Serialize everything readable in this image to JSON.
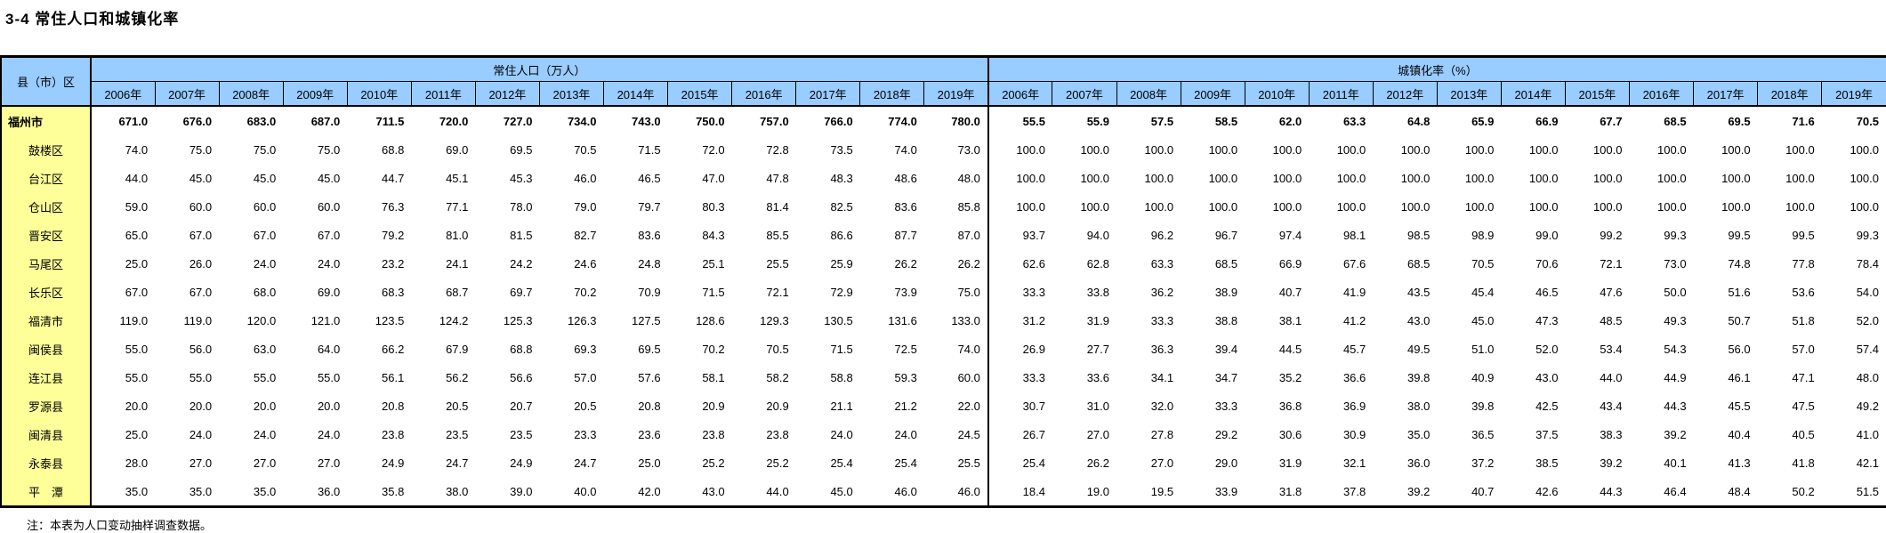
{
  "title": "3-4 常住人口和城镇化率",
  "note": "注：本表为人口变动抽样调查数据。",
  "colors": {
    "header_bg": "#99CCFF",
    "label_bg": "#FFFF99",
    "border": "#000000",
    "page_bg": "#FFFFFF"
  },
  "table": {
    "corner_header": "县（市）区",
    "group_headers": {
      "population": "常住人口（万人）",
      "urbanization": "城镇化率（%）"
    },
    "years": [
      "2006年",
      "2007年",
      "2008年",
      "2009年",
      "2010年",
      "2011年",
      "2012年",
      "2013年",
      "2014年",
      "2015年",
      "2016年",
      "2017年",
      "2018年",
      "2019年"
    ],
    "rows": [
      {
        "name": "福州市",
        "bold": true,
        "indent": false,
        "pop": [
          "671.0",
          "676.0",
          "683.0",
          "687.0",
          "711.5",
          "720.0",
          "727.0",
          "734.0",
          "743.0",
          "750.0",
          "757.0",
          "766.0",
          "774.0",
          "780.0"
        ],
        "rate": [
          "55.5",
          "55.9",
          "57.5",
          "58.5",
          "62.0",
          "63.3",
          "64.8",
          "65.9",
          "66.9",
          "67.7",
          "68.5",
          "69.5",
          "71.6",
          "70.5"
        ]
      },
      {
        "name": "鼓楼区",
        "bold": false,
        "indent": true,
        "pop": [
          "74.0",
          "75.0",
          "75.0",
          "75.0",
          "68.8",
          "69.0",
          "69.5",
          "70.5",
          "71.5",
          "72.0",
          "72.8",
          "73.5",
          "74.0",
          "73.0"
        ],
        "rate": [
          "100.0",
          "100.0",
          "100.0",
          "100.0",
          "100.0",
          "100.0",
          "100.0",
          "100.0",
          "100.0",
          "100.0",
          "100.0",
          "100.0",
          "100.0",
          "100.0"
        ]
      },
      {
        "name": "台江区",
        "bold": false,
        "indent": true,
        "pop": [
          "44.0",
          "45.0",
          "45.0",
          "45.0",
          "44.7",
          "45.1",
          "45.3",
          "46.0",
          "46.5",
          "47.0",
          "47.8",
          "48.3",
          "48.6",
          "48.0"
        ],
        "rate": [
          "100.0",
          "100.0",
          "100.0",
          "100.0",
          "100.0",
          "100.0",
          "100.0",
          "100.0",
          "100.0",
          "100.0",
          "100.0",
          "100.0",
          "100.0",
          "100.0"
        ]
      },
      {
        "name": "仓山区",
        "bold": false,
        "indent": true,
        "pop": [
          "59.0",
          "60.0",
          "60.0",
          "60.0",
          "76.3",
          "77.1",
          "78.0",
          "79.0",
          "79.7",
          "80.3",
          "81.4",
          "82.5",
          "83.6",
          "85.8"
        ],
        "rate": [
          "100.0",
          "100.0",
          "100.0",
          "100.0",
          "100.0",
          "100.0",
          "100.0",
          "100.0",
          "100.0",
          "100.0",
          "100.0",
          "100.0",
          "100.0",
          "100.0"
        ]
      },
      {
        "name": "晋安区",
        "bold": false,
        "indent": true,
        "pop": [
          "65.0",
          "67.0",
          "67.0",
          "67.0",
          "79.2",
          "81.0",
          "81.5",
          "82.7",
          "83.6",
          "84.3",
          "85.5",
          "86.6",
          "87.7",
          "87.0"
        ],
        "rate": [
          "93.7",
          "94.0",
          "96.2",
          "96.7",
          "97.4",
          "98.1",
          "98.5",
          "98.9",
          "99.0",
          "99.2",
          "99.3",
          "99.5",
          "99.5",
          "99.3"
        ]
      },
      {
        "name": "马尾区",
        "bold": false,
        "indent": true,
        "pop": [
          "25.0",
          "26.0",
          "24.0",
          "24.0",
          "23.2",
          "24.1",
          "24.2",
          "24.6",
          "24.8",
          "25.1",
          "25.5",
          "25.9",
          "26.2",
          "26.2"
        ],
        "rate": [
          "62.6",
          "62.8",
          "63.3",
          "68.5",
          "66.9",
          "67.6",
          "68.5",
          "70.5",
          "70.6",
          "72.1",
          "73.0",
          "74.8",
          "77.8",
          "78.4"
        ]
      },
      {
        "name": "长乐区",
        "bold": false,
        "indent": true,
        "pop": [
          "67.0",
          "67.0",
          "68.0",
          "69.0",
          "68.3",
          "68.7",
          "69.7",
          "70.2",
          "70.9",
          "71.5",
          "72.1",
          "72.9",
          "73.9",
          "75.0"
        ],
        "rate": [
          "33.3",
          "33.8",
          "36.2",
          "38.9",
          "40.7",
          "41.9",
          "43.5",
          "45.4",
          "46.5",
          "47.6",
          "50.0",
          "51.6",
          "53.6",
          "54.0"
        ]
      },
      {
        "name": "福清市",
        "bold": false,
        "indent": true,
        "pop": [
          "119.0",
          "119.0",
          "120.0",
          "121.0",
          "123.5",
          "124.2",
          "125.3",
          "126.3",
          "127.5",
          "128.6",
          "129.3",
          "130.5",
          "131.6",
          "133.0"
        ],
        "rate": [
          "31.2",
          "31.9",
          "33.3",
          "38.8",
          "38.1",
          "41.2",
          "43.0",
          "45.0",
          "47.3",
          "48.5",
          "49.3",
          "50.7",
          "51.8",
          "52.0"
        ]
      },
      {
        "name": "闽侯县",
        "bold": false,
        "indent": true,
        "pop": [
          "55.0",
          "56.0",
          "63.0",
          "64.0",
          "66.2",
          "67.9",
          "68.8",
          "69.3",
          "69.5",
          "70.2",
          "70.5",
          "71.5",
          "72.5",
          "74.0"
        ],
        "rate": [
          "26.9",
          "27.7",
          "36.3",
          "39.4",
          "44.5",
          "45.7",
          "49.5",
          "51.0",
          "52.0",
          "53.4",
          "54.3",
          "56.0",
          "57.0",
          "57.4"
        ]
      },
      {
        "name": "连江县",
        "bold": false,
        "indent": true,
        "pop": [
          "55.0",
          "55.0",
          "55.0",
          "55.0",
          "56.1",
          "56.2",
          "56.6",
          "57.0",
          "57.6",
          "58.1",
          "58.2",
          "58.8",
          "59.3",
          "60.0"
        ],
        "rate": [
          "33.3",
          "33.6",
          "34.1",
          "34.7",
          "35.2",
          "36.6",
          "39.8",
          "40.9",
          "43.0",
          "44.0",
          "44.9",
          "46.1",
          "47.1",
          "48.0"
        ]
      },
      {
        "name": "罗源县",
        "bold": false,
        "indent": true,
        "pop": [
          "20.0",
          "20.0",
          "20.0",
          "20.0",
          "20.8",
          "20.5",
          "20.7",
          "20.5",
          "20.8",
          "20.9",
          "20.9",
          "21.1",
          "21.2",
          "22.0"
        ],
        "rate": [
          "30.7",
          "31.0",
          "32.0",
          "33.3",
          "36.8",
          "36.9",
          "38.0",
          "39.8",
          "42.5",
          "43.4",
          "44.3",
          "45.5",
          "47.5",
          "49.2"
        ]
      },
      {
        "name": "闽清县",
        "bold": false,
        "indent": true,
        "pop": [
          "25.0",
          "24.0",
          "24.0",
          "24.0",
          "23.8",
          "23.5",
          "23.5",
          "23.3",
          "23.6",
          "23.8",
          "23.8",
          "24.0",
          "24.0",
          "24.5"
        ],
        "rate": [
          "26.7",
          "27.0",
          "27.8",
          "29.2",
          "30.6",
          "30.9",
          "35.0",
          "36.5",
          "37.5",
          "38.3",
          "39.2",
          "40.4",
          "40.5",
          "41.0"
        ]
      },
      {
        "name": "永泰县",
        "bold": false,
        "indent": true,
        "pop": [
          "28.0",
          "27.0",
          "27.0",
          "27.0",
          "24.9",
          "24.7",
          "24.9",
          "24.7",
          "25.0",
          "25.2",
          "25.2",
          "25.4",
          "25.4",
          "25.5"
        ],
        "rate": [
          "25.4",
          "26.2",
          "27.0",
          "29.0",
          "31.9",
          "32.1",
          "36.0",
          "37.2",
          "38.5",
          "39.2",
          "40.1",
          "41.3",
          "41.8",
          "42.1"
        ]
      },
      {
        "name": "平　潭",
        "bold": false,
        "indent": true,
        "pop": [
          "35.0",
          "35.0",
          "35.0",
          "36.0",
          "35.8",
          "38.0",
          "39.0",
          "40.0",
          "42.0",
          "43.0",
          "44.0",
          "45.0",
          "46.0",
          "46.0"
        ],
        "rate": [
          "18.4",
          "19.0",
          "19.5",
          "33.9",
          "31.8",
          "37.8",
          "39.2",
          "40.7",
          "42.6",
          "44.3",
          "46.4",
          "48.4",
          "50.2",
          "51.5"
        ]
      }
    ]
  }
}
